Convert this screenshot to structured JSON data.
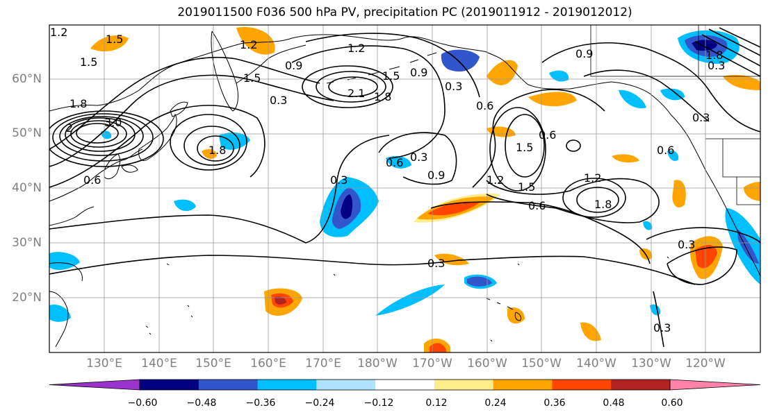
{
  "title": "2019011500 F036 500 hPa PV, precipitation PC (2019011912 - 2019012012)",
  "lat_labels": [
    "60°N",
    "50°N",
    "40°N",
    "30°N",
    "20°N"
  ],
  "lon_labels": [
    "130°E",
    "140°E",
    "150°E",
    "160°E",
    "170°E",
    "180°W",
    "170°W",
    "160°W",
    "150°W",
    "140°W",
    "130°W",
    "120°W"
  ],
  "colorbar": {
    "ticks": [
      "−0.60",
      "−0.48",
      "−0.36",
      "−0.24",
      "−0.12",
      "0.12",
      "0.24",
      "0.36",
      "0.48",
      "0.60"
    ],
    "colors": [
      "#9933cc",
      "#000080",
      "#3355cc",
      "#00bfff",
      "#b0e2ff",
      "#ffffff",
      "#ffec8b",
      "#ffa500",
      "#ff4500",
      "#b22222",
      "#ff82ab"
    ]
  },
  "contour_labels": [
    "1.2",
    "1.5",
    "1.5",
    "0.9",
    "0.3",
    "1.2",
    "1.5",
    "2.1",
    "1.8",
    "1.2",
    "0.9",
    "0.3",
    "0.9",
    "0.3",
    "0.6",
    "1.8",
    "3.0",
    "2",
    "1.8",
    "1.8",
    "0.6",
    "0.3",
    "0.9",
    "0.6",
    "1.5",
    "0.6",
    "1.2",
    "1.5",
    "0.6",
    "1.2",
    "1.8",
    "0.3",
    "0.6",
    "0.3",
    "0.3",
    "0.3",
    "1.5",
    "0.3"
  ],
  "colors": {
    "contour": "#000000",
    "coast": "#000000",
    "grid": "#999999",
    "axis_label": "#808080"
  }
}
